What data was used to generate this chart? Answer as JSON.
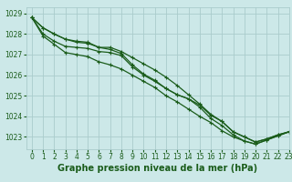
{
  "title": "Graphe pression niveau de la mer (hPa)",
  "bg_color": "#cce8e8",
  "grid_color": "#aacccc",
  "line_color": "#1a5c1a",
  "xlim": [
    -0.5,
    23
  ],
  "ylim": [
    1022.4,
    1029.3
  ],
  "yticks": [
    1023,
    1024,
    1025,
    1026,
    1027,
    1028,
    1029
  ],
  "xticks": [
    0,
    1,
    2,
    3,
    4,
    5,
    6,
    7,
    8,
    9,
    10,
    11,
    12,
    13,
    14,
    15,
    16,
    17,
    18,
    19,
    20,
    21,
    22,
    23
  ],
  "series": [
    [
      1028.8,
      1028.3,
      1028.0,
      1027.75,
      1027.6,
      1027.55,
      1027.35,
      1027.35,
      1027.15,
      1026.85,
      1026.55,
      1026.25,
      1025.9,
      1025.5,
      1025.05,
      1024.6,
      1024.1,
      1023.75,
      1023.25,
      1023.0,
      1022.75,
      1022.9,
      1023.1,
      1023.25
    ],
    [
      1028.8,
      1028.3,
      1028.0,
      1027.75,
      1027.65,
      1027.6,
      1027.35,
      1027.25,
      1027.05,
      1026.5,
      1026.05,
      1025.75,
      1025.35,
      1025.05,
      1024.85,
      1024.55,
      1024.05,
      1023.75,
      1023.25,
      1023.0,
      1022.75,
      1022.9,
      1023.1,
      1023.25
    ],
    [
      1028.8,
      1028.0,
      1027.65,
      1027.4,
      1027.35,
      1027.3,
      1027.15,
      1027.1,
      1026.95,
      1026.4,
      1026.0,
      1025.7,
      1025.35,
      1025.05,
      1024.85,
      1024.45,
      1023.9,
      1023.55,
      1023.1,
      1022.8,
      1022.65,
      1022.85,
      1023.05,
      1023.25
    ],
    [
      1028.8,
      1027.9,
      1027.5,
      1027.1,
      1027.0,
      1026.9,
      1026.65,
      1026.5,
      1026.3,
      1026.0,
      1025.7,
      1025.4,
      1025.0,
      1024.7,
      1024.35,
      1024.0,
      1023.7,
      1023.3,
      1023.0,
      1022.8,
      1022.65,
      1022.85,
      1023.05,
      1023.25
    ]
  ],
  "tick_fontsize": 5.5,
  "label_fontsize": 7,
  "linewidth": 0.9,
  "markersize": 3.0
}
